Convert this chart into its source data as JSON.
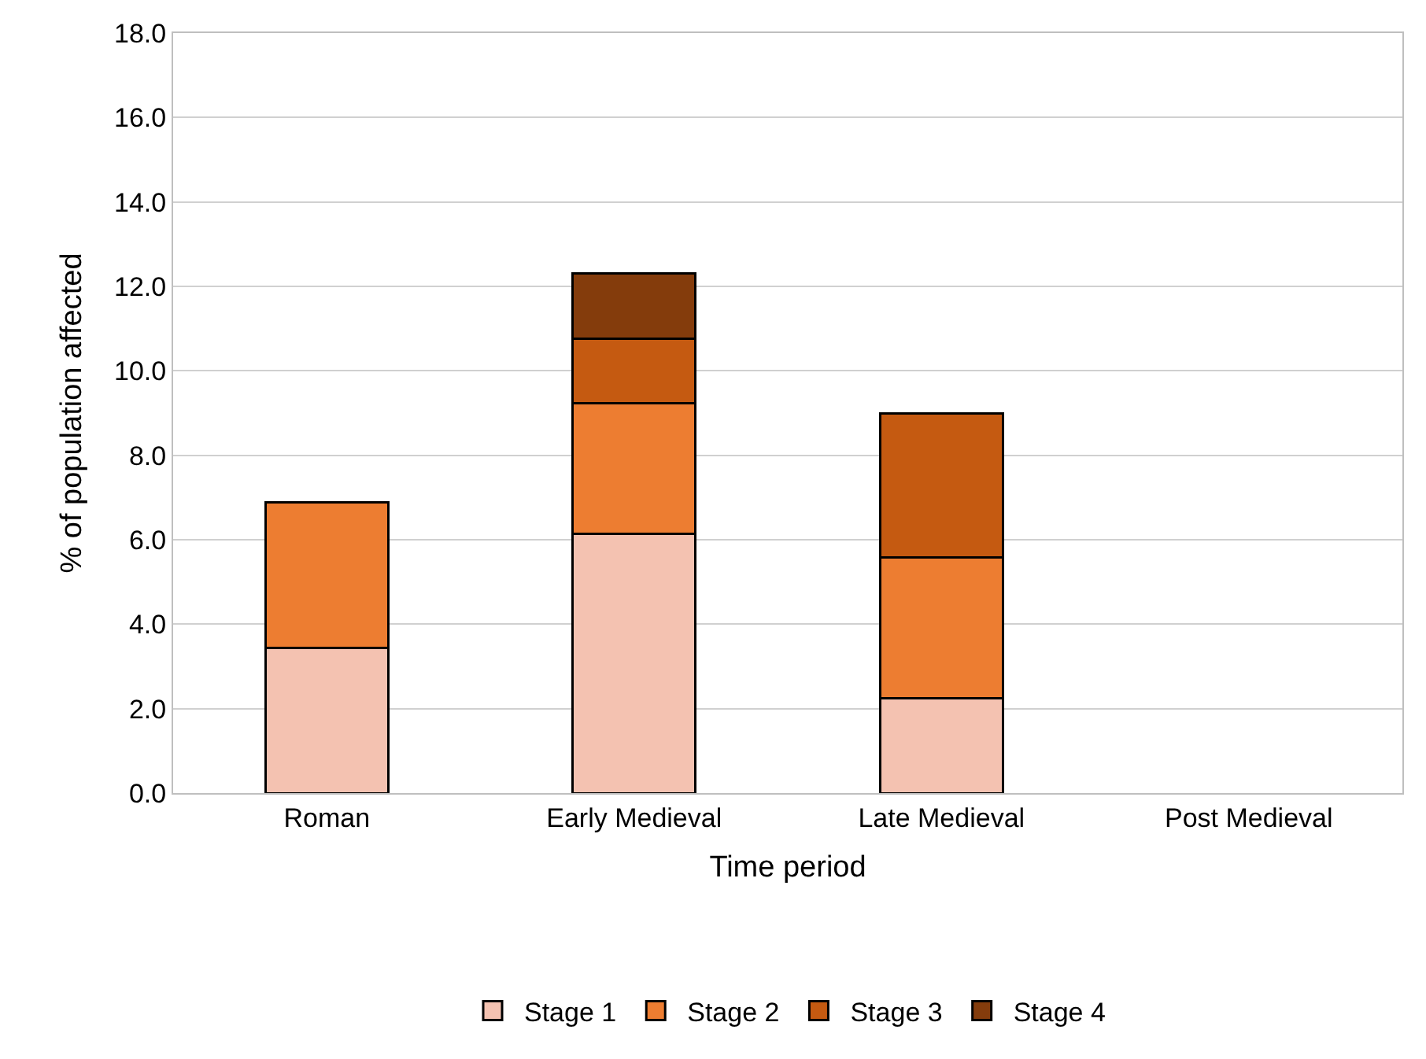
{
  "chart_data": {
    "type": "bar",
    "stacked": true,
    "xlabel": "Time period",
    "ylabel": "% of population affected",
    "categories": [
      "Roman",
      "Early Medieval",
      "Late Medieval",
      "Post Medieval"
    ],
    "series": [
      {
        "name": "Stage 1",
        "color": "#f4c2b1",
        "values": [
          3.43,
          6.14,
          2.24,
          null
        ]
      },
      {
        "name": "Stage 2",
        "color": "#ed7d31",
        "values": [
          3.45,
          3.09,
          3.35,
          null
        ]
      },
      {
        "name": "Stage 3",
        "color": "#c55a11",
        "values": [
          null,
          1.54,
          3.41,
          null
        ]
      },
      {
        "name": "Stage 4",
        "color": "#843c0c",
        "values": [
          null,
          1.53,
          null,
          null
        ]
      }
    ],
    "ylim": [
      0,
      18
    ],
    "yticks": [
      {
        "value": 0,
        "label": "0.0"
      },
      {
        "value": 2,
        "label": "2.0"
      },
      {
        "value": 4,
        "label": "4.0"
      },
      {
        "value": 6,
        "label": "6.0"
      },
      {
        "value": 8,
        "label": "8.0"
      },
      {
        "value": 10,
        "label": "10.0"
      },
      {
        "value": 12,
        "label": "12.0"
      },
      {
        "value": 14,
        "label": "14.0"
      },
      {
        "value": 16,
        "label": "16.0"
      },
      {
        "value": 18,
        "label": "18.0"
      }
    ],
    "grid": "y",
    "legend": "bottom"
  }
}
